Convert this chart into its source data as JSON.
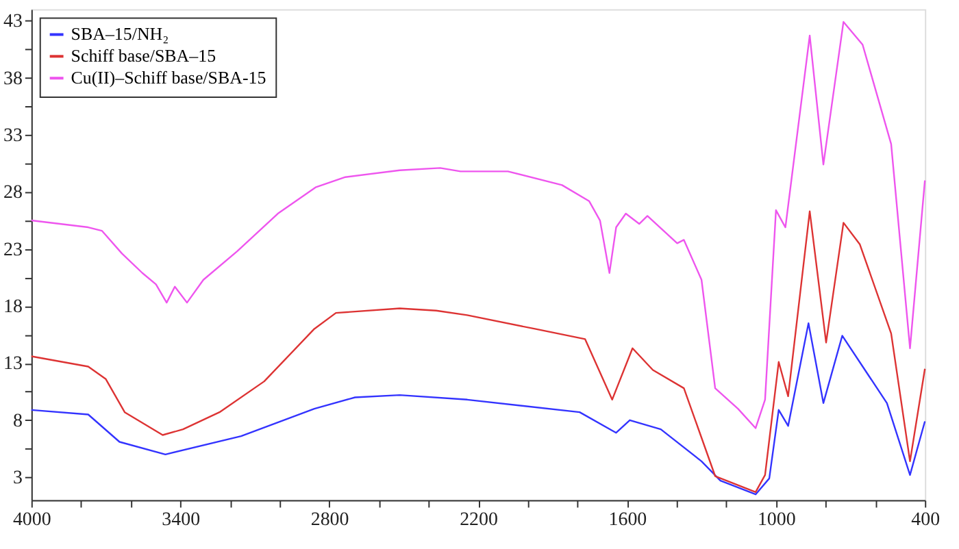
{
  "chart_data": {
    "type": "line",
    "xlim": [
      4000,
      400
    ],
    "ylim": [
      1,
      44
    ],
    "xticks": [
      4000,
      {
        "value": 3800,
        "label": null
      },
      {
        "value": 3600,
        "label": null
      },
      3400,
      {
        "value": 3200,
        "label": null
      },
      {
        "value": 3000,
        "label": null
      },
      2800,
      {
        "value": 2600,
        "label": null
      },
      {
        "value": 2400,
        "label": null
      },
      2200,
      {
        "value": 2000,
        "label": null
      },
      {
        "value": 1800,
        "label": null
      },
      1600,
      {
        "value": 1400,
        "label": null
      },
      {
        "value": 1200,
        "label": null
      },
      1000,
      {
        "value": 800,
        "label": null
      },
      {
        "value": 600,
        "label": null
      },
      400
    ],
    "yticks": [
      3,
      {
        "value": 5.5,
        "label": null
      },
      8,
      {
        "value": 10.5,
        "label": null
      },
      13,
      {
        "value": 15.5,
        "label": null
      },
      18,
      {
        "value": 20.5,
        "label": null
      },
      23,
      {
        "value": 25.5,
        "label": null
      },
      28,
      {
        "value": 30.5,
        "label": null
      },
      33,
      {
        "value": 35.5,
        "label": null
      },
      38,
      {
        "value": 40.5,
        "label": null
      },
      43
    ],
    "grid": false,
    "legend": "top left",
    "marker": "none",
    "line_style": "solid",
    "series": [
      {
        "name": "SBA–15/NH₂",
        "color": "#3333ff",
        "x": [
          4000,
          3771,
          3645,
          3460,
          3155,
          2860,
          2696,
          2516,
          2244,
          1791,
          1644,
          1589,
          1464,
          1300,
          1224,
          1082,
          1027,
          989,
          951,
          869,
          809,
          733,
          553,
          460,
          400
        ],
        "values": [
          8.9,
          8.5,
          6.1,
          5.0,
          6.6,
          9.0,
          10.0,
          10.2,
          9.8,
          8.7,
          6.9,
          8.0,
          7.2,
          4.4,
          2.7,
          1.5,
          2.9,
          8.9,
          7.5,
          16.5,
          9.5,
          15.4,
          9.5,
          3.2,
          7.9
        ]
      },
      {
        "name": "Schiff base/SBA–15",
        "color": "#dd3333",
        "x": [
          4000,
          3771,
          3700,
          3624,
          3471,
          3389,
          3242,
          3062,
          2860,
          2773,
          2516,
          2369,
          2244,
          1971,
          1769,
          1660,
          1578,
          1496,
          1371,
          1245,
          1082,
          1044,
          989,
          951,
          864,
          798,
          728,
          662,
          536,
          460,
          400
        ],
        "values": [
          13.6,
          12.7,
          11.6,
          8.7,
          6.7,
          7.2,
          8.7,
          11.4,
          16.0,
          17.4,
          17.8,
          17.6,
          17.2,
          16.0,
          15.1,
          9.8,
          14.3,
          12.4,
          10.8,
          3.1,
          1.7,
          3.2,
          13.1,
          10.1,
          26.3,
          14.8,
          25.3,
          23.4,
          15.6,
          4.4,
          12.5
        ]
      },
      {
        "name": "Cu(II)–Schiff base/SBA-15",
        "color": "#ee55ee",
        "x": [
          4000,
          3771,
          3716,
          3635,
          3553,
          3498,
          3455,
          3422,
          3373,
          3307,
          3171,
          3007,
          2855,
          2735,
          2516,
          2353,
          2271,
          2080,
          1862,
          1753,
          1709,
          1671,
          1644,
          1605,
          1551,
          1518,
          1398,
          1371,
          1300,
          1245,
          1153,
          1082,
          1044,
          1000,
          962,
          864,
          809,
          728,
          651,
          536,
          460,
          400
        ],
        "values": [
          25.5,
          24.9,
          24.6,
          22.6,
          20.9,
          19.9,
          18.3,
          19.7,
          18.3,
          20.3,
          22.8,
          26.1,
          28.4,
          29.3,
          29.9,
          30.1,
          29.8,
          29.8,
          28.6,
          27.2,
          25.5,
          20.9,
          24.9,
          26.1,
          25.2,
          25.9,
          23.5,
          23.8,
          20.3,
          10.8,
          9.0,
          7.3,
          9.8,
          26.4,
          24.9,
          41.7,
          30.4,
          42.9,
          40.9,
          32.2,
          14.3,
          29.0
        ]
      }
    ]
  }
}
